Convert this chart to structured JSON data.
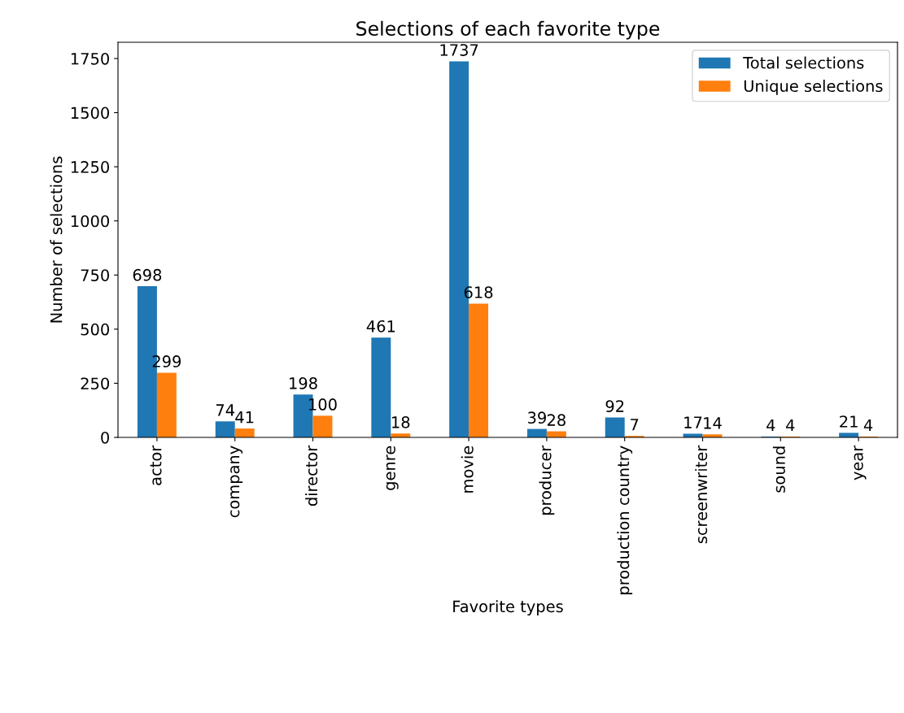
{
  "chart_data": {
    "type": "bar",
    "title": "Selections of each favorite type",
    "xlabel": "Favorite types",
    "ylabel": "Number of selections",
    "categories": [
      "actor",
      "company",
      "director",
      "genre",
      "movie",
      "producer",
      "production country",
      "screenwriter",
      "sound",
      "year"
    ],
    "series": [
      {
        "name": "Total selections",
        "color": "#1f77b4",
        "values": [
          698,
          74,
          198,
          461,
          1737,
          39,
          92,
          17,
          4,
          21
        ]
      },
      {
        "name": "Unique selections",
        "color": "#ff7f0e",
        "values": [
          299,
          41,
          100,
          18,
          618,
          28,
          7,
          14,
          4,
          4
        ]
      }
    ],
    "ylim": [
      0,
      1825
    ],
    "yticks": [
      0,
      250,
      500,
      750,
      1000,
      1250,
      1500,
      1750
    ],
    "data_labels": true,
    "legend": "top right",
    "grid": false
  }
}
